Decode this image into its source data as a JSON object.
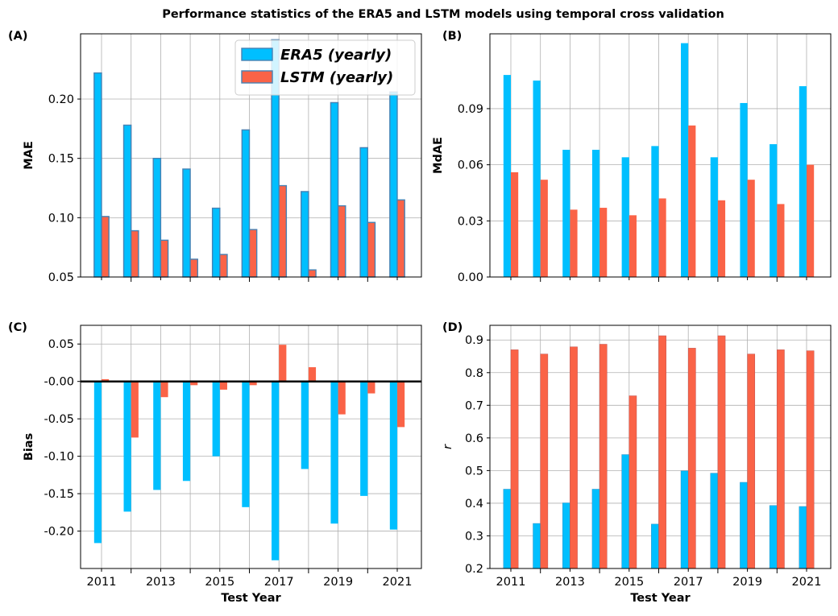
{
  "figure": {
    "title": "Performance statistics of the ERA5 and LSTM models using temporal cross validation"
  },
  "colors": {
    "era5": "#00bfff",
    "lstm": "#fa6347",
    "edge_ab": "#4682b4",
    "grid": "#b0b0b0"
  },
  "chart_data": [
    {
      "id": "A",
      "type": "bar",
      "panel_label": "(A)",
      "ylabel": "MAE",
      "xlabel": "",
      "categories": [
        "2011",
        "2012",
        "2013",
        "2014",
        "2015",
        "2016",
        "2017",
        "2018",
        "2019",
        "2020",
        "2021"
      ],
      "series": [
        {
          "name": "ERA5 (yearly)",
          "values": [
            0.222,
            0.178,
            0.15,
            0.141,
            0.108,
            0.174,
            0.25,
            0.122,
            0.197,
            0.159,
            0.206
          ]
        },
        {
          "name": "LSTM (yearly)",
          "values": [
            0.101,
            0.089,
            0.081,
            0.065,
            0.069,
            0.09,
            0.127,
            0.056,
            0.11,
            0.096,
            0.115
          ]
        }
      ],
      "ylim": [
        0.05,
        0.255
      ],
      "yticks": [
        0.05,
        0.1,
        0.15,
        0.2
      ],
      "ytick_labels": [
        "0.05",
        "0.10",
        "0.15",
        "0.20"
      ],
      "xtick_labels": [
        "",
        "",
        "",
        "",
        "",
        "",
        "",
        "",
        "",
        "",
        ""
      ],
      "legend": "top-right",
      "legend_entries": [
        "ERA5 (yearly)",
        "LSTM (yearly)"
      ],
      "grid": true
    },
    {
      "id": "B",
      "type": "bar",
      "panel_label": "(B)",
      "ylabel": "MdAE",
      "xlabel": "",
      "categories": [
        "2011",
        "2012",
        "2013",
        "2014",
        "2015",
        "2016",
        "2017",
        "2018",
        "2019",
        "2020",
        "2021"
      ],
      "series": [
        {
          "name": "ERA5",
          "values": [
            0.108,
            0.105,
            0.068,
            0.068,
            0.064,
            0.07,
            0.125,
            0.064,
            0.093,
            0.071,
            0.102
          ]
        },
        {
          "name": "LSTM",
          "values": [
            0.056,
            0.052,
            0.036,
            0.037,
            0.033,
            0.042,
            0.081,
            0.041,
            0.052,
            0.039,
            0.06
          ]
        }
      ],
      "ylim": [
        0.0,
        0.13
      ],
      "yticks": [
        0.0,
        0.03,
        0.06,
        0.09
      ],
      "ytick_labels": [
        "0.00",
        "0.03",
        "0.06",
        "0.09"
      ],
      "xtick_labels": [
        "",
        "",
        "",
        "",
        "",
        "",
        "",
        "",
        "",
        "",
        ""
      ],
      "grid": true
    },
    {
      "id": "C",
      "type": "bar",
      "panel_label": "(C)",
      "ylabel": "Bias",
      "xlabel": "Test Year",
      "categories": [
        "2011",
        "2012",
        "2013",
        "2014",
        "2015",
        "2016",
        "2017",
        "2018",
        "2019",
        "2020",
        "2021"
      ],
      "series": [
        {
          "name": "ERA5",
          "values": [
            -0.216,
            -0.174,
            -0.145,
            -0.133,
            -0.1,
            -0.168,
            -0.239,
            -0.117,
            -0.19,
            -0.153,
            -0.198
          ]
        },
        {
          "name": "LSTM",
          "values": [
            0.003,
            -0.075,
            -0.021,
            -0.005,
            -0.011,
            -0.005,
            0.049,
            0.019,
            -0.044,
            -0.016,
            -0.061
          ]
        }
      ],
      "ylim": [
        -0.25,
        0.075
      ],
      "yticks": [
        -0.2,
        -0.15,
        -0.1,
        -0.05,
        0.0,
        0.05
      ],
      "ytick_labels": [
        "-0.20",
        "-0.15",
        "-0.10",
        "-0.05",
        "-0.00",
        "0.05"
      ],
      "xtick_labels": [
        "2011",
        "",
        "2013",
        "",
        "2015",
        "",
        "2017",
        "",
        "2019",
        "",
        "2021"
      ],
      "zero_line": true,
      "grid": true
    },
    {
      "id": "D",
      "type": "bar",
      "panel_label": "(D)",
      "ylabel": "r",
      "xlabel": "Test Year",
      "categories": [
        "2011",
        "2012",
        "2013",
        "2014",
        "2015",
        "2016",
        "2017",
        "2018",
        "2019",
        "2020",
        "2021"
      ],
      "series": [
        {
          "name": "ERA5",
          "values": [
            0.443,
            0.338,
            0.401,
            0.443,
            0.549,
            0.336,
            0.499,
            0.492,
            0.464,
            0.393,
            0.39
          ]
        },
        {
          "name": "LSTM",
          "values": [
            0.87,
            0.857,
            0.879,
            0.887,
            0.729,
            0.913,
            0.875,
            0.913,
            0.857,
            0.87,
            0.867
          ]
        }
      ],
      "ylim": [
        0.2,
        0.945
      ],
      "yticks": [
        0.2,
        0.3,
        0.4,
        0.5,
        0.6,
        0.7,
        0.8,
        0.9
      ],
      "ytick_labels": [
        "0.2",
        "0.3",
        "0.4",
        "0.5",
        "0.6",
        "0.7",
        "0.8",
        "0.9"
      ],
      "xtick_labels": [
        "2011",
        "",
        "2013",
        "",
        "2015",
        "",
        "2017",
        "",
        "2019",
        "",
        "2021"
      ],
      "grid": true
    }
  ]
}
